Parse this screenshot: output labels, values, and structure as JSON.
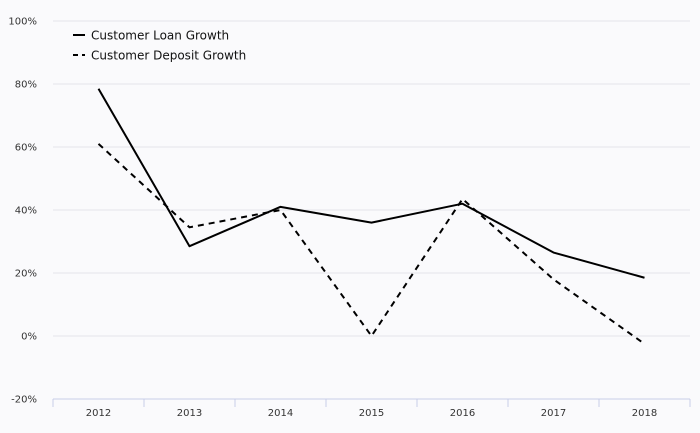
{
  "chart_data": {
    "type": "line",
    "title": "",
    "xlabel": "",
    "ylabel": "",
    "categories": [
      "2012",
      "2013",
      "2014",
      "2015",
      "2016",
      "2017",
      "2018"
    ],
    "series": [
      {
        "name": "Customer Loan Growth",
        "values": [
          78.5,
          28.5,
          41,
          36,
          42,
          26.5,
          18.5
        ],
        "dash": "solid"
      },
      {
        "name": "Customer Deposit Growth",
        "values": [
          61,
          34.5,
          40,
          0,
          43.5,
          18,
          -2.5
        ],
        "dash": "dashed"
      }
    ],
    "yticks": [
      {
        "value": 100,
        "label": "100%"
      },
      {
        "value": 80,
        "label": "80%"
      },
      {
        "value": 60,
        "label": "60%"
      },
      {
        "value": 40,
        "label": "40%"
      },
      {
        "value": 20,
        "label": "20%"
      },
      {
        "value": 0,
        "label": "0%"
      },
      {
        "value": -20,
        "label": "-20%"
      }
    ],
    "ylim": [
      -20,
      100
    ],
    "grid": true,
    "legend_position": "top-left",
    "colors": {
      "line": "#000000",
      "grid": "#e4e4ea",
      "axis": "#c8cde8",
      "background": "#fafafc"
    }
  }
}
